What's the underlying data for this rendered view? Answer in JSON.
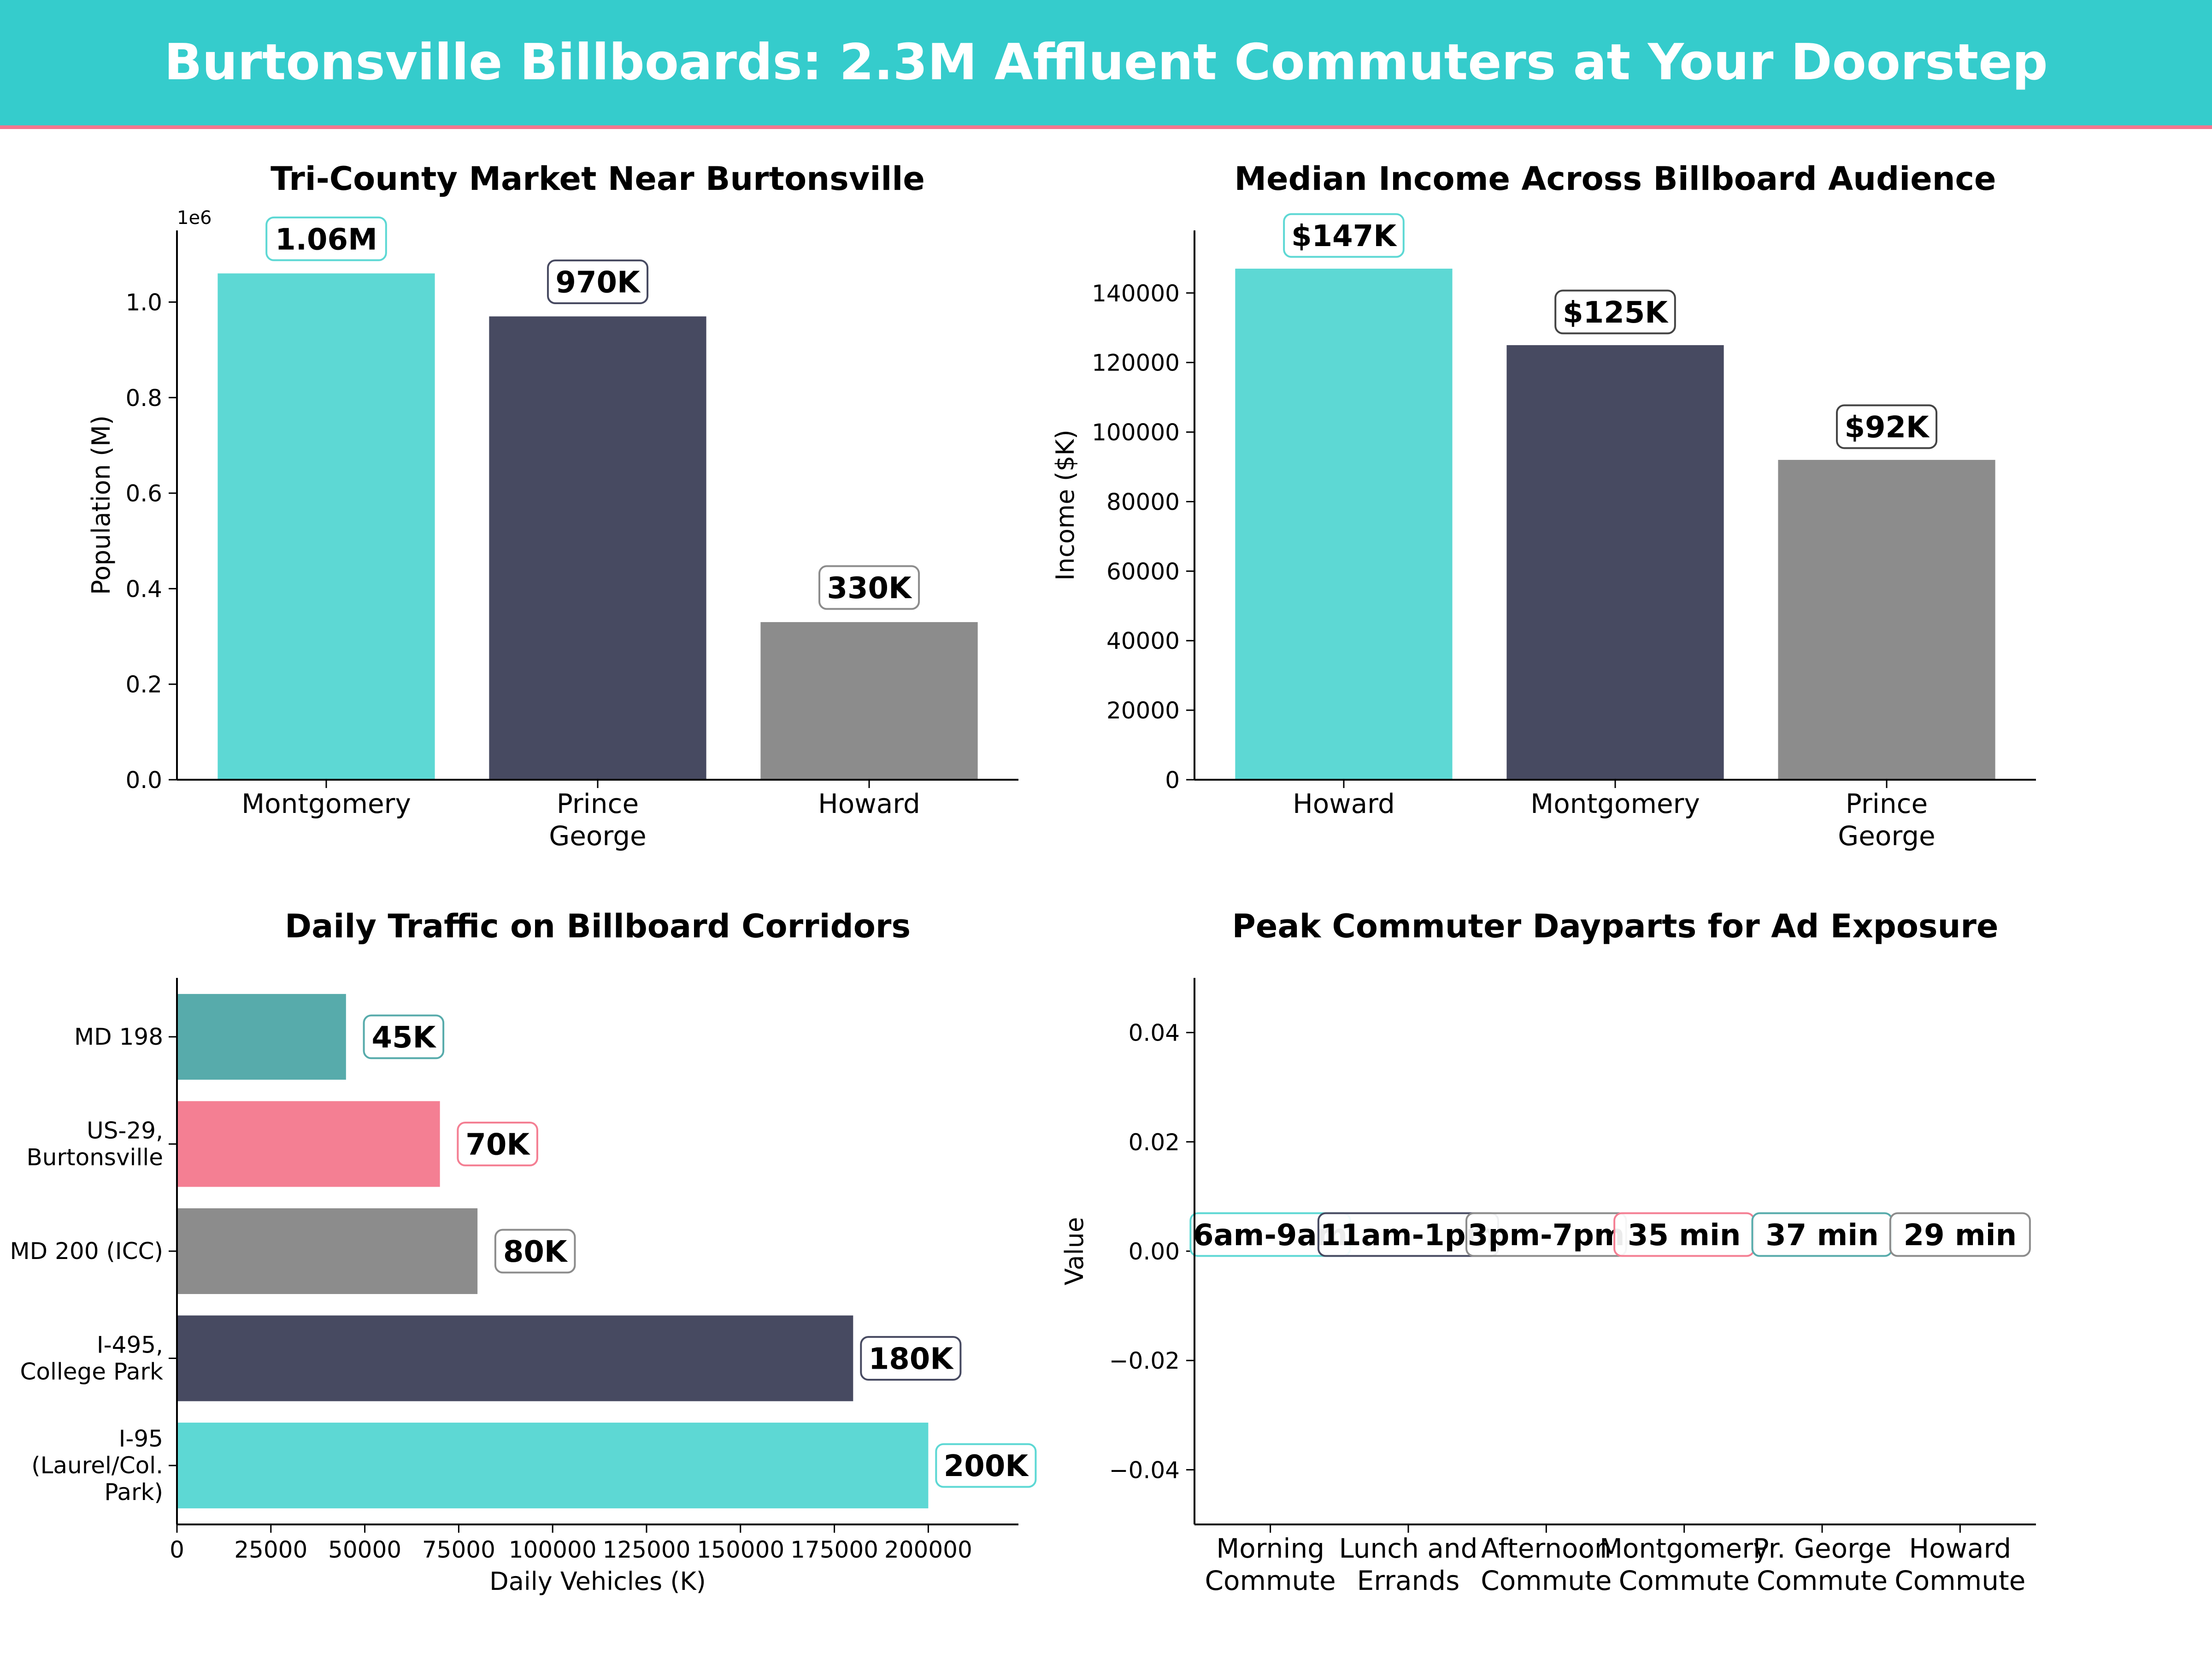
{
  "banner": {
    "title": "Burtonsville Billboards: 2.3M Affluent Commuters at Your Doorstep"
  },
  "colors": {
    "banner_bg": "#35CCCC",
    "banner_accent": "#F4768F",
    "teal": "#5DD8D4",
    "navy": "#474A61",
    "gray": "#8C8C8C",
    "pink": "#F47F93",
    "dark_teal": "#57ABAB"
  },
  "chart_data": [
    {
      "type": "bar",
      "title": "Tri-County Market Near Burtonsville",
      "ylabel": "Population (M)",
      "xlabel": "",
      "offset_label": "1e6",
      "categories": [
        "Montgomery",
        "Prince\nGeorge",
        "Howard"
      ],
      "values": [
        1060000,
        970000,
        330000
      ],
      "data_labels": [
        "1.06M",
        "970K",
        "330K"
      ],
      "ylim": [
        0,
        1150000
      ],
      "yticks": [
        0,
        200000,
        400000,
        600000,
        800000,
        1000000
      ],
      "ytick_labels": [
        "0.0",
        "0.2",
        "0.4",
        "0.6",
        "0.8",
        "1.0"
      ],
      "bar_colors": [
        "#5DD8D4",
        "#474A61",
        "#8C8C8C"
      ],
      "grid": false
    },
    {
      "type": "bar",
      "title": "Median Income Across Billboard Audience",
      "ylabel": "Income ($K)",
      "xlabel": "",
      "categories": [
        "Howard",
        "Montgomery",
        "Prince\nGeorge"
      ],
      "values": [
        147000,
        125000,
        92000
      ],
      "data_labels": [
        "$147K",
        "$125K",
        "$92K"
      ],
      "ylim": [
        0,
        158000
      ],
      "yticks": [
        0,
        20000,
        40000,
        60000,
        80000,
        100000,
        120000,
        140000
      ],
      "ytick_labels": [
        "0",
        "20000",
        "40000",
        "60000",
        "80000",
        "100000",
        "120000",
        "140000"
      ],
      "bar_colors": [
        "#5DD8D4",
        "#474A61",
        "#8C8C8C"
      ],
      "grid": false
    },
    {
      "type": "bar",
      "orientation": "horizontal",
      "title": "Daily Traffic on Billboard Corridors",
      "xlabel": "Daily Vehicles (K)",
      "ylabel": "",
      "categories": [
        "I-95\n(Laurel/Col.\nPark)",
        "I-495,\nCollege Park",
        "MD 200 (ICC)",
        "US-29,\nBurtonsville",
        "MD 198"
      ],
      "values": [
        200000,
        180000,
        80000,
        70000,
        45000
      ],
      "data_labels": [
        "200K",
        "180K",
        "80K",
        "70K",
        "45K"
      ],
      "xlim": [
        0,
        224000
      ],
      "xticks": [
        0,
        25000,
        50000,
        75000,
        100000,
        125000,
        150000,
        175000,
        200000
      ],
      "xtick_labels": [
        "0",
        "25000",
        "50000",
        "75000",
        "100000",
        "125000",
        "150000",
        "175000",
        "200000"
      ],
      "bar_colors": [
        "#5DD8D4",
        "#474A61",
        "#8C8C8C",
        "#F47F93",
        "#57ABAB"
      ],
      "grid": false
    },
    {
      "type": "scatter",
      "title": "Peak Commuter Dayparts for Ad Exposure",
      "ylabel": "Value",
      "xlabel": "",
      "categories": [
        "Morning\nCommute",
        "Lunch and\nErrands",
        "Afternoon\nCommute",
        "Montgomery\nCommute",
        "Pr. George\nCommute",
        "Howard\nCommute"
      ],
      "values": [
        0,
        0,
        0,
        0,
        0,
        0
      ],
      "data_labels": [
        "6am-9am",
        "11am-1pm",
        "3pm-7pm",
        "35 min",
        "37 min",
        "29 min"
      ],
      "label_edge_colors": [
        "#5DD8D4",
        "#474A61",
        "#8C8C8C",
        "#F47F93",
        "#57ABAB",
        "#8C8C8C"
      ],
      "ylim": [
        -0.05,
        0.05
      ],
      "yticks": [
        -0.04,
        -0.02,
        0,
        0.02,
        0.04
      ],
      "ytick_labels": [
        "−0.04",
        "−0.02",
        "0.00",
        "0.02",
        "0.04"
      ],
      "grid": false
    }
  ]
}
